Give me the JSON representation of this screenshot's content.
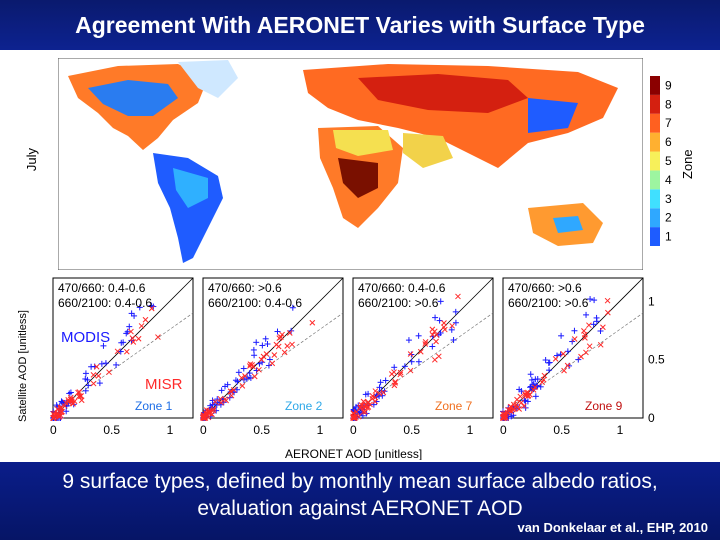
{
  "title": "Agreement With AERONET Varies with Surface Type",
  "map": {
    "row_label": "July",
    "colorbar_label": "Zone",
    "colorbar_ticks": [
      "1",
      "2",
      "3",
      "4",
      "5",
      "6",
      "7",
      "8",
      "9"
    ],
    "colorbar_colors": [
      "#1e5cff",
      "#2fa8ff",
      "#40e0ff",
      "#9df5a0",
      "#f7f05a",
      "#ffb030",
      "#ff6020",
      "#d42010",
      "#8b0000"
    ]
  },
  "scatter": {
    "ylabel": "Satellite AOD [unitless]",
    "xlabel": "AERONET AOD [unitless]",
    "x_ticks": [
      "0",
      "0.5",
      "1"
    ],
    "y_ticks": [
      "0",
      "0.5",
      "1"
    ],
    "series_labels": {
      "modis": "MODIS",
      "misr": "MISR"
    },
    "modis_color": "#1a1aff",
    "misr_color": "#ff2a2a",
    "panels": [
      {
        "line1": "470/660: 0.4-0.6",
        "line2": "660/2100: 0.4-0.6",
        "zone": "Zone 1",
        "zone_color": "#1e6ee6"
      },
      {
        "line1": "470/660: >0.6",
        "line2": "660/2100: 0.4-0.6",
        "zone": "Zone 2",
        "zone_color": "#2ea8e8"
      },
      {
        "line1": "470/660: 0.4-0.6",
        "line2": "660/2100: >0.6",
        "zone": "Zone 7",
        "zone_color": "#f07020"
      },
      {
        "line1": "470/660: >0.6",
        "line2": "660/2100: >0.6",
        "zone": "Zone 9",
        "zone_color": "#c01010"
      }
    ]
  },
  "caption": {
    "line1": "9 surface types, defined by monthly mean surface albedo ratios,",
    "line2": "evaluation against AERONET AOD",
    "citation": "van Donkelaar et al., EHP, 2010"
  }
}
